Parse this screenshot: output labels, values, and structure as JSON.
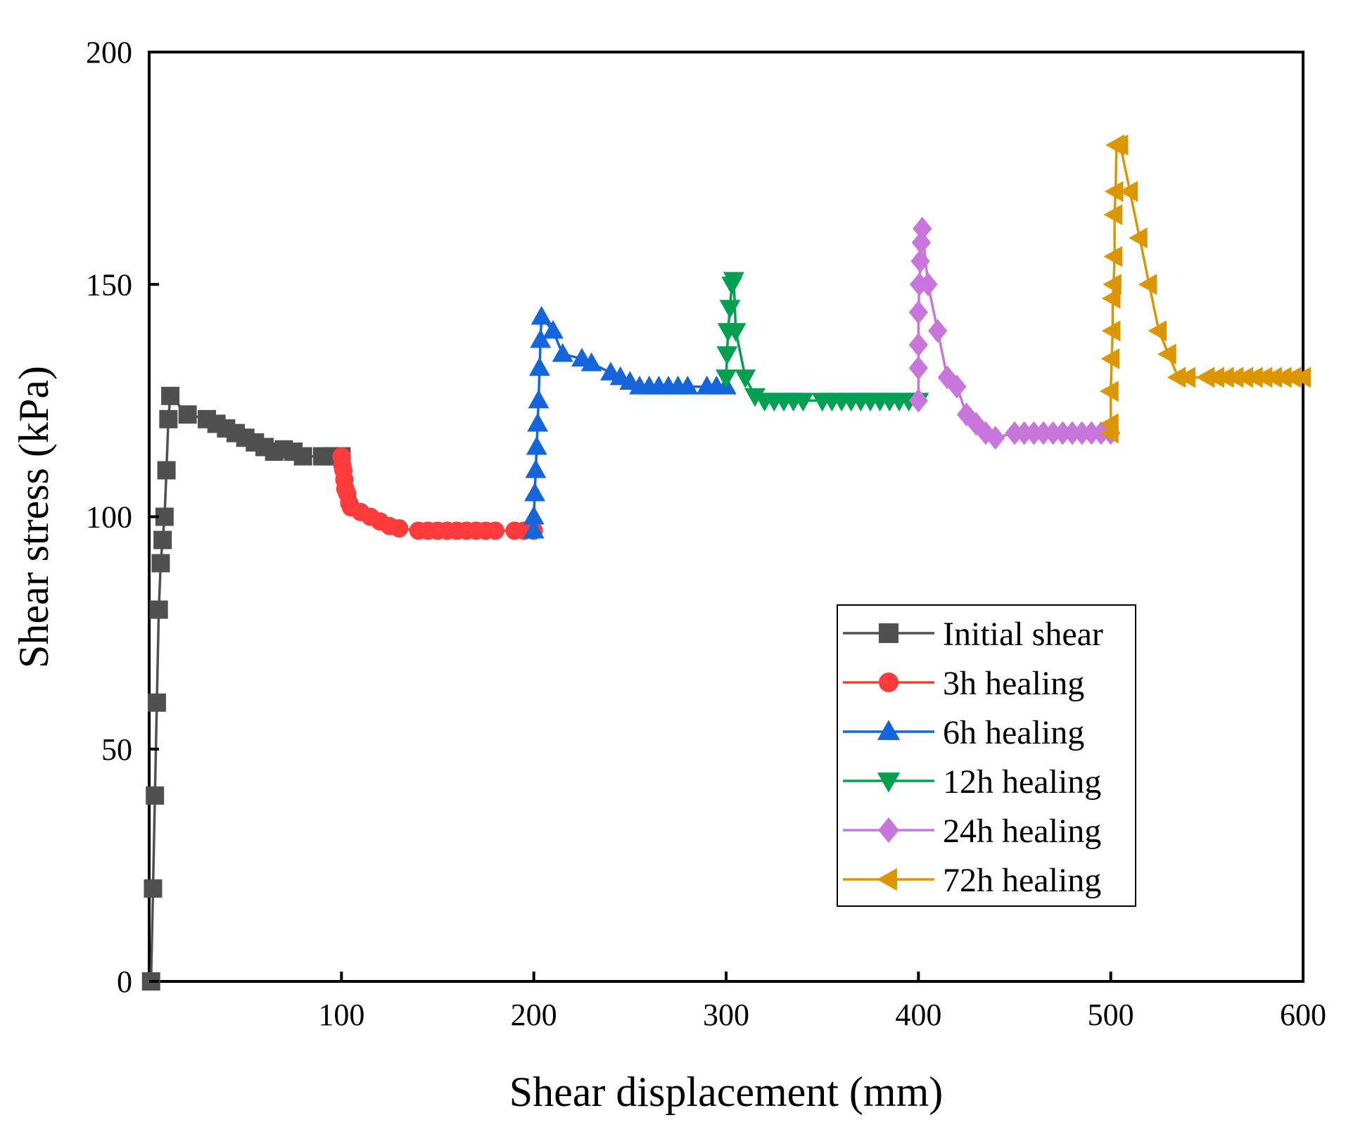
{
  "chart_data": {
    "type": "line",
    "title": "",
    "xlabel": "Shear displacement (mm)",
    "ylabel": "Shear stress (kPa)",
    "xlim": [
      0,
      600
    ],
    "ylim": [
      0,
      200
    ],
    "xticks": [
      100,
      200,
      300,
      400,
      500,
      600
    ],
    "yticks": [
      0,
      50,
      100,
      150,
      200
    ],
    "legend_position": "right-center",
    "series": [
      {
        "name": "Initial shear",
        "color": "#505050",
        "marker": "square",
        "x": [
          1,
          2,
          3,
          4,
          5,
          6,
          7,
          8,
          9,
          10,
          11,
          20,
          30,
          35,
          40,
          45,
          50,
          55,
          60,
          65,
          70,
          75,
          80,
          90,
          95,
          100
        ],
        "y": [
          0,
          20,
          40,
          60,
          80,
          90,
          95,
          100,
          110,
          121,
          126,
          122,
          121,
          120,
          119,
          118,
          117,
          116,
          115,
          114,
          114.5,
          114,
          113,
          113,
          113,
          113
        ]
      },
      {
        "name": "3h healing",
        "color": "#ff3b3b",
        "marker": "circle",
        "x": [
          100,
          100.5,
          101,
          101.5,
          102,
          103,
          104,
          105,
          110,
          115,
          120,
          125,
          130,
          140,
          145,
          150,
          155,
          160,
          165,
          170,
          175,
          180,
          190,
          195,
          200
        ],
        "y": [
          113,
          111,
          110,
          108,
          106,
          105,
          103,
          102,
          101,
          100,
          99,
          98,
          97.5,
          97,
          97,
          97,
          97,
          97,
          97,
          97,
          97,
          97,
          97,
          97,
          97
        ]
      },
      {
        "name": "6h healing",
        "color": "#1464dc",
        "marker": "triangle-up",
        "x": [
          200,
          200,
          200.5,
          201,
          201.5,
          202,
          202.5,
          203,
          203.5,
          204,
          210,
          215,
          225,
          230,
          240,
          245,
          250,
          255,
          260,
          265,
          270,
          275,
          280,
          290,
          295,
          300
        ],
        "y": [
          97,
          100,
          105,
          110,
          115,
          120,
          125,
          132,
          138,
          143,
          140,
          135,
          134,
          133,
          131,
          130,
          129,
          128,
          128,
          128,
          128,
          128,
          128,
          128,
          128,
          128
        ]
      },
      {
        "name": "12h healing",
        "color": "#00a050",
        "marker": "triangle-down",
        "x": [
          300,
          300.5,
          301,
          302,
          303,
          304,
          305,
          310,
          315,
          320,
          325,
          330,
          335,
          340,
          350,
          355,
          360,
          365,
          370,
          375,
          380,
          385,
          390,
          395,
          400
        ],
        "y": [
          130,
          135,
          140,
          145,
          150,
          151,
          140,
          130,
          126,
          125,
          125,
          125,
          125,
          125,
          125,
          125,
          125,
          125,
          125,
          125,
          125,
          125,
          125,
          125,
          125
        ]
      },
      {
        "name": "24h healing",
        "color": "#c876dc",
        "marker": "diamond",
        "x": [
          400,
          400,
          400,
          400,
          400.5,
          401,
          401.5,
          402,
          405,
          410,
          415,
          420,
          425,
          430,
          435,
          440,
          450,
          455,
          460,
          465,
          470,
          475,
          480,
          485,
          490,
          495,
          500
        ],
        "y": [
          125,
          132,
          137,
          144,
          150,
          155,
          159,
          162,
          150,
          140,
          130,
          128,
          122,
          120,
          118,
          117,
          118,
          118,
          118,
          118,
          118,
          118,
          118,
          118,
          118,
          118,
          118
        ]
      },
      {
        "name": "72h healing",
        "color": "#dc9600",
        "marker": "triangle-left",
        "x": [
          500,
          500,
          500,
          500.5,
          501,
          501,
          501.5,
          502,
          502,
          502.5,
          503,
          505,
          510,
          515,
          520,
          525,
          530,
          535,
          540,
          550,
          555,
          560,
          565,
          570,
          575,
          580,
          585,
          590,
          595,
          600
        ],
        "y": [
          118,
          120,
          127,
          134,
          140,
          147,
          150,
          156,
          165,
          170,
          180,
          180,
          170,
          160,
          150,
          140,
          135,
          130,
          130,
          130,
          130,
          130,
          130,
          130,
          130,
          130,
          130,
          130,
          130,
          130
        ]
      }
    ]
  }
}
